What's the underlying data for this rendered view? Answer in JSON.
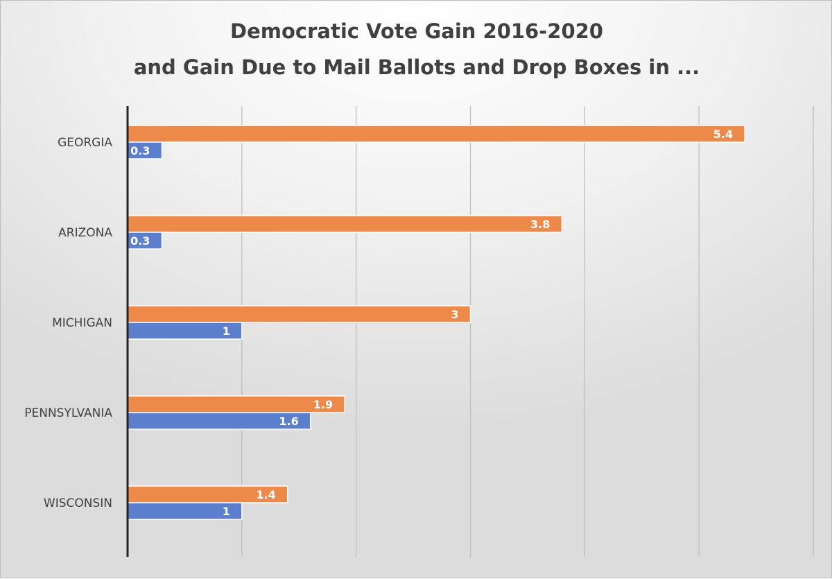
{
  "chart_data": {
    "type": "bar",
    "orientation": "horizontal",
    "title": "Democratic Vote Gain 2016-2020",
    "subtitle": "and Gain Due to Mail Ballots and Drop Boxes in ...",
    "categories": [
      "GEORGIA",
      "ARIZONA",
      "MICHIGAN",
      "PENNSYLVANIA",
      "WISCONSIN"
    ],
    "series": [
      {
        "values": [
          5.4,
          3.8,
          3,
          1.9,
          1.4
        ],
        "color": "#ed8a4a",
        "labels": [
          "5.4",
          "3.8",
          "3",
          "1.9",
          "1.4"
        ]
      },
      {
        "values": [
          0.3,
          0.3,
          1,
          1.6,
          1
        ],
        "color": "#5b7fcc",
        "labels": [
          "0.3",
          "0.3",
          "1",
          "1.6",
          "1"
        ]
      }
    ],
    "xlim": [
      0,
      6
    ],
    "grid": true,
    "legend": "none",
    "data_labels": "inside-end"
  }
}
